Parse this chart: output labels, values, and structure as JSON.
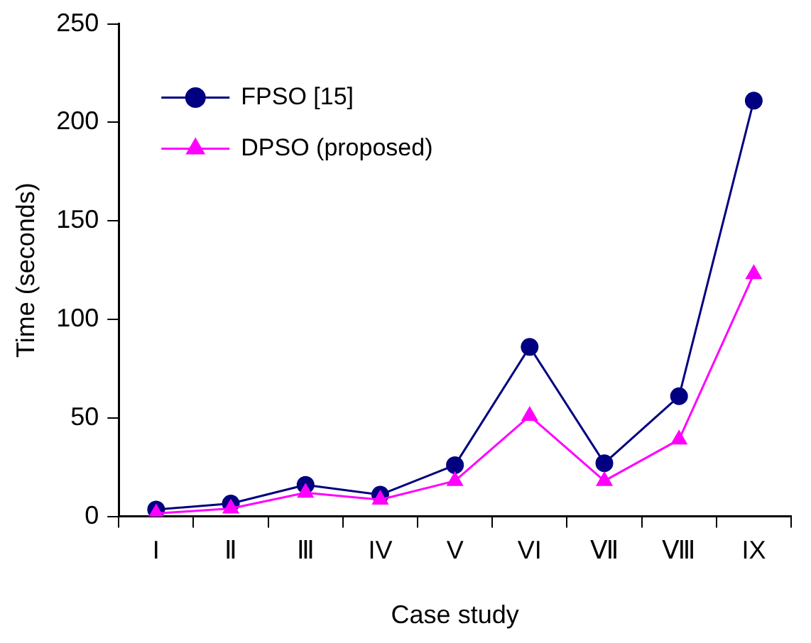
{
  "chart_data": {
    "type": "line",
    "xlabel": "Case study",
    "ylabel": "Time (seconds)",
    "categories": [
      "I",
      "Ⅱ",
      "Ⅲ",
      "IV",
      "V",
      "VI",
      "Ⅶ",
      "Ⅷ",
      "IX"
    ],
    "series": [
      {
        "name": "FPSO [15]",
        "color": "#000080",
        "marker": "circle",
        "values": [
          3.5,
          6.5,
          16,
          11,
          26,
          86,
          27,
          61,
          211
        ]
      },
      {
        "name": "DPSO (proposed)",
        "color": "#ff00ff",
        "marker": "triangle",
        "values": [
          1.5,
          4,
          12,
          8.5,
          18,
          51,
          18,
          39,
          123
        ]
      }
    ],
    "ylim": [
      0,
      250
    ],
    "yticks": [
      0,
      50,
      100,
      150,
      200,
      250
    ],
    "grid": false,
    "legend": "top left",
    "line_style": "solid"
  }
}
